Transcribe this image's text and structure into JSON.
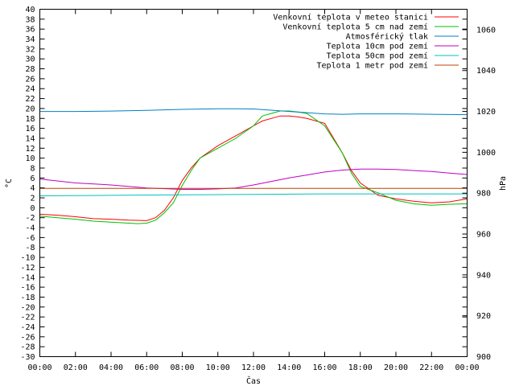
{
  "chart_data": {
    "type": "line",
    "xlabel": "Čas",
    "ylabel": "°C",
    "y2label": "hPa",
    "x_ticks": [
      "00:00",
      "02:00",
      "04:00",
      "06:00",
      "08:00",
      "10:00",
      "12:00",
      "14:00",
      "16:00",
      "18:00",
      "20:00",
      "22:00",
      "00:00"
    ],
    "xlim_hours": [
      0,
      24
    ],
    "ylim": [
      -30,
      40
    ],
    "y_ticks": [
      40,
      38,
      36,
      34,
      32,
      30,
      28,
      26,
      24,
      22,
      20,
      18,
      16,
      14,
      12,
      10,
      8,
      6,
      4,
      2,
      0,
      -2,
      -4,
      -6,
      -8,
      -10,
      -12,
      -14,
      -16,
      -18,
      -20,
      -22,
      -24,
      -26,
      -28,
      -30
    ],
    "y2lim": [
      900,
      1070
    ],
    "y2_ticks": [
      1060,
      1040,
      1020,
      1000,
      980,
      960,
      940,
      920,
      900
    ],
    "grid": false,
    "legend_position": "top-right",
    "series": [
      {
        "name": "Venkovní teplota v meteo stanici",
        "color": "#ff0000",
        "axis": "left",
        "x": [
          0,
          1,
          2,
          3,
          4,
          5,
          6,
          6.5,
          7,
          7.5,
          8,
          8.5,
          9,
          10,
          11,
          12,
          12.5,
          13,
          13.5,
          14,
          14.5,
          15,
          16,
          17,
          17.5,
          18,
          19,
          20,
          21,
          22,
          23,
          24
        ],
        "y": [
          -1.3,
          -1.5,
          -1.8,
          -2.2,
          -2.3,
          -2.5,
          -2.6,
          -2.0,
          -0.5,
          2.0,
          5.5,
          8.0,
          10.0,
          12.5,
          14.5,
          16.5,
          17.5,
          18.0,
          18.5,
          18.5,
          18.3,
          18.0,
          17.0,
          11.0,
          7.5,
          5.0,
          2.5,
          1.8,
          1.3,
          1.0,
          1.2,
          1.8
        ]
      },
      {
        "name": "Venkovní teplota 5 cm nad zemí",
        "color": "#00c000",
        "axis": "left",
        "x": [
          0,
          1,
          2,
          3,
          4,
          5,
          5.5,
          6,
          6.5,
          7,
          7.5,
          8,
          8.5,
          9,
          10,
          11,
          12,
          12.5,
          13,
          13.5,
          14,
          14.5,
          15,
          16,
          17,
          17.5,
          18,
          19,
          20,
          21,
          22,
          23,
          24
        ],
        "y": [
          -1.7,
          -2.0,
          -2.3,
          -2.7,
          -2.9,
          -3.1,
          -3.2,
          -3.1,
          -2.5,
          -1.0,
          1.0,
          4.5,
          7.5,
          10.0,
          12.0,
          14.0,
          16.5,
          18.5,
          19.0,
          19.5,
          19.5,
          19.3,
          19.0,
          16.5,
          11.0,
          7.0,
          4.3,
          3.0,
          1.5,
          0.8,
          0.5,
          0.7,
          0.8
        ]
      },
      {
        "name": "Atmosférický tlak",
        "color": "#0080c0",
        "axis": "right",
        "x": [
          0,
          2,
          4,
          6,
          8,
          10,
          11,
          12,
          14,
          16,
          17,
          18,
          20,
          22,
          24
        ],
        "y": [
          1020.0,
          1020.0,
          1020.2,
          1020.5,
          1021.0,
          1021.3,
          1021.3,
          1021.2,
          1020.0,
          1018.8,
          1018.6,
          1018.8,
          1018.8,
          1018.6,
          1018.4
        ]
      },
      {
        "name": "Teplota 10cm pod zemí",
        "color": "#c000c0",
        "axis": "left",
        "x": [
          0,
          2,
          4,
          6,
          8,
          9,
          10,
          11,
          12,
          13,
          14,
          15,
          16,
          17,
          18,
          19,
          20,
          21,
          22,
          23,
          24
        ],
        "y": [
          5.8,
          5.0,
          4.6,
          4.0,
          3.7,
          3.7,
          3.8,
          4.0,
          4.6,
          5.3,
          6.0,
          6.6,
          7.2,
          7.6,
          7.8,
          7.8,
          7.7,
          7.5,
          7.3,
          7.0,
          6.7
        ]
      },
      {
        "name": "Teplota 50cm pod zemí",
        "color": "#00c0c0",
        "axis": "left",
        "x": [
          0,
          4,
          8,
          12,
          16,
          20,
          24
        ],
        "y": [
          2.4,
          2.5,
          2.6,
          2.7,
          2.8,
          2.8,
          2.8
        ]
      },
      {
        "name": "Teplota 1 metr pod zemí",
        "color": "#c04000",
        "axis": "left",
        "x": [
          0,
          24
        ],
        "y": [
          3.9,
          3.9
        ]
      }
    ]
  }
}
